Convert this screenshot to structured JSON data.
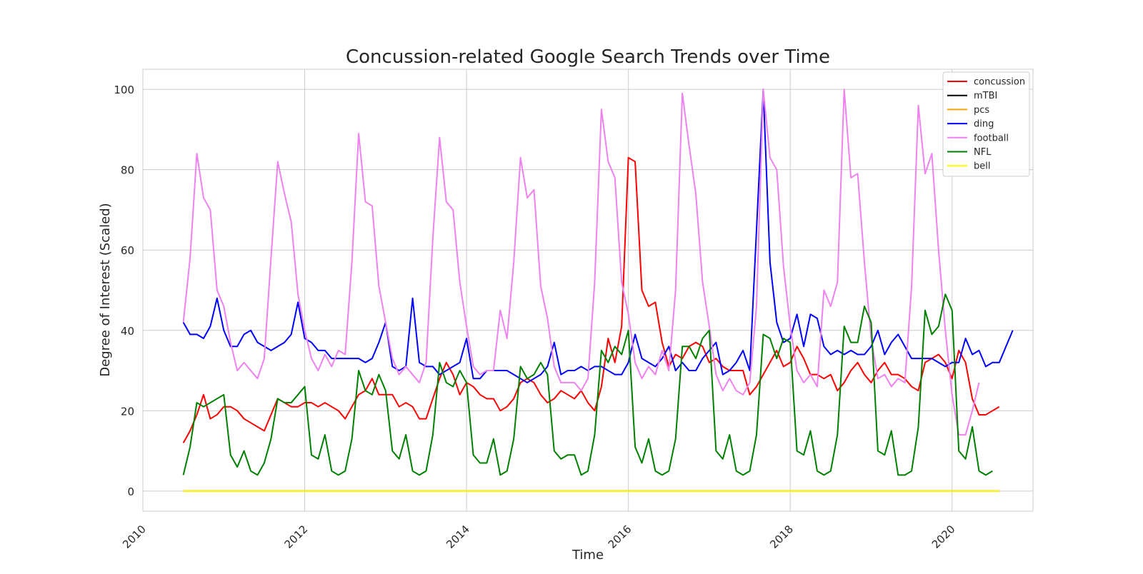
{
  "chart_data": {
    "type": "line",
    "title": "Concussion-related Google Search Trends over Time",
    "xlabel": "Time",
    "ylabel": "Degree of Interest (Scaled)",
    "xlim": [
      2010.0,
      2021.0
    ],
    "ylim": [
      -5,
      105
    ],
    "xticks": [
      2010,
      2012,
      2014,
      2016,
      2018,
      2020
    ],
    "yticks": [
      0,
      20,
      40,
      60,
      80,
      100
    ],
    "grid": true,
    "legend_position": "top-right",
    "x_start": 2010.5,
    "x_step_months": 1,
    "series": [
      {
        "name": "concussion",
        "color": "#ff0000",
        "values": [
          12,
          15,
          19,
          24,
          18,
          19,
          21,
          21,
          20,
          18,
          17,
          16,
          15,
          19,
          23,
          22,
          21,
          21,
          22,
          22,
          21,
          22,
          21,
          20,
          18,
          21,
          24,
          25,
          28,
          24,
          24,
          24,
          21,
          22,
          21,
          18,
          18,
          23,
          28,
          32,
          29,
          24,
          27,
          26,
          24,
          23,
          23,
          20,
          21,
          23,
          27,
          28,
          27,
          24,
          22,
          23,
          25,
          24,
          23,
          25,
          22,
          20,
          26,
          38,
          32,
          41,
          83,
          82,
          50,
          46,
          47,
          37,
          31,
          34,
          33,
          36,
          37,
          36,
          32,
          33,
          31,
          30,
          30,
          30,
          24,
          26,
          29,
          32,
          35,
          31,
          32,
          36,
          33,
          29,
          29,
          28,
          29,
          25,
          27,
          30,
          32,
          29,
          27,
          30,
          32,
          29,
          29,
          28,
          26,
          25,
          32,
          33,
          34,
          32,
          28,
          35,
          32,
          23,
          19,
          19,
          20,
          21
        ]
      },
      {
        "name": "mTBI",
        "color": "#000000",
        "values": [
          0,
          0,
          0,
          0,
          0,
          0,
          0,
          0,
          0,
          0,
          0,
          0,
          0,
          0,
          0,
          0,
          0,
          0,
          0,
          0,
          0,
          0,
          0,
          0,
          0,
          0,
          0,
          0,
          0,
          0,
          0,
          0,
          0,
          0,
          0,
          0,
          0,
          0,
          0,
          0,
          0,
          0,
          0,
          0,
          0,
          0,
          0,
          0,
          0,
          0,
          0,
          0,
          0,
          0,
          0,
          0,
          0,
          0,
          0,
          0,
          0,
          0,
          0,
          0,
          0,
          0,
          0,
          0,
          0,
          0,
          0,
          0,
          0,
          0,
          0,
          0,
          0,
          0,
          0,
          0,
          0,
          0,
          0,
          0,
          0,
          0,
          0,
          0,
          0,
          0,
          0,
          0,
          0,
          0,
          0,
          0,
          0,
          0,
          0,
          0,
          0,
          0,
          0,
          0,
          0,
          0,
          0,
          0,
          0,
          0,
          0,
          0,
          0,
          0,
          0,
          0,
          0,
          0,
          0,
          0,
          0,
          0
        ]
      },
      {
        "name": "pcs",
        "color": "#ffa500",
        "values": [
          0,
          0,
          0,
          0,
          0,
          0,
          0,
          0,
          0,
          0,
          0,
          0,
          0,
          0,
          0,
          0,
          0,
          0,
          0,
          0,
          0,
          0,
          0,
          0,
          0,
          0,
          0,
          0,
          0,
          0,
          0,
          0,
          0,
          0,
          0,
          0,
          0,
          0,
          0,
          0,
          0,
          0,
          0,
          0,
          0,
          0,
          0,
          0,
          0,
          0,
          0,
          0,
          0,
          0,
          0,
          0,
          0,
          0,
          0,
          0,
          0,
          0,
          0,
          0,
          0,
          0,
          0,
          0,
          0,
          0,
          0,
          0,
          0,
          0,
          0,
          0,
          0,
          0,
          0,
          0,
          0,
          0,
          0,
          0,
          0,
          0,
          0,
          0,
          0,
          0,
          0,
          0,
          0,
          0,
          0,
          0,
          0,
          0,
          0,
          0,
          0,
          0,
          0,
          0,
          0,
          0,
          0,
          0,
          0,
          0,
          0,
          0,
          0,
          0,
          0,
          0,
          0,
          0,
          0,
          0,
          0,
          0
        ]
      },
      {
        "name": "ding",
        "color": "#0000ff",
        "values": [
          42,
          39,
          39,
          38,
          41,
          48,
          40,
          36,
          36,
          39,
          40,
          37,
          36,
          35,
          36,
          37,
          39,
          47,
          38,
          37,
          35,
          35,
          33,
          33,
          33,
          33,
          33,
          32,
          33,
          37,
          42,
          31,
          30,
          31,
          48,
          32,
          31,
          31,
          29,
          30,
          31,
          32,
          38,
          28,
          28,
          30,
          30,
          30,
          30,
          29,
          28,
          27,
          28,
          29,
          31,
          37,
          29,
          30,
          30,
          31,
          30,
          31,
          31,
          30,
          29,
          29,
          32,
          39,
          33,
          32,
          31,
          33,
          36,
          30,
          32,
          30,
          30,
          33,
          35,
          37,
          29,
          30,
          32,
          35,
          30,
          65,
          100,
          57,
          42,
          37,
          38,
          44,
          36,
          44,
          43,
          36,
          34,
          35,
          34,
          35,
          34,
          34,
          36,
          40,
          34,
          37,
          39,
          36,
          33,
          33,
          33,
          33,
          32,
          31,
          32,
          32,
          38,
          34,
          35,
          31,
          32,
          32,
          36,
          40
        ]
      },
      {
        "name": "football",
        "color": "#ee82ee",
        "values": [
          42,
          58,
          84,
          73,
          70,
          50,
          46,
          37,
          30,
          32,
          30,
          28,
          33,
          58,
          82,
          74,
          67,
          49,
          40,
          33,
          30,
          34,
          31,
          35,
          34,
          57,
          89,
          72,
          71,
          51,
          42,
          33,
          29,
          31,
          29,
          27,
          32,
          63,
          88,
          72,
          70,
          52,
          41,
          31,
          29,
          30,
          30,
          45,
          38,
          57,
          83,
          73,
          75,
          51,
          43,
          31,
          27,
          27,
          27,
          25,
          28,
          52,
          95,
          82,
          78,
          52,
          44,
          32,
          28,
          31,
          29,
          35,
          30,
          50,
          99,
          86,
          74,
          52,
          41,
          29,
          25,
          28,
          25,
          24,
          27,
          46,
          100,
          83,
          80,
          56,
          41,
          30,
          27,
          29,
          26,
          50,
          46,
          52,
          100,
          78,
          79,
          57,
          38,
          28,
          29,
          26,
          28,
          27,
          51,
          96,
          79,
          84,
          60,
          40,
          24,
          14,
          14,
          20,
          27
        ]
      },
      {
        "name": "NFL",
        "color": "#008000",
        "values": [
          4,
          11,
          22,
          21,
          22,
          23,
          24,
          9,
          6,
          10,
          5,
          4,
          7,
          13,
          23,
          22,
          22,
          24,
          26,
          9,
          8,
          14,
          5,
          4,
          5,
          13,
          30,
          25,
          24,
          29,
          25,
          10,
          8,
          14,
          5,
          4,
          5,
          14,
          32,
          27,
          26,
          30,
          27,
          9,
          7,
          7,
          13,
          4,
          5,
          13,
          31,
          28,
          29,
          32,
          29,
          10,
          8,
          9,
          9,
          4,
          5,
          14,
          35,
          32,
          36,
          34,
          40,
          11,
          7,
          13,
          5,
          4,
          5,
          13,
          36,
          36,
          33,
          38,
          40,
          10,
          8,
          14,
          5,
          4,
          5,
          14,
          39,
          38,
          33,
          38,
          37,
          10,
          9,
          15,
          5,
          4,
          5,
          14,
          41,
          37,
          37,
          46,
          42,
          10,
          9,
          15,
          4,
          4,
          5,
          16,
          45,
          39,
          41,
          49,
          45,
          10,
          8,
          16,
          5,
          4,
          5
        ]
      },
      {
        "name": "bell",
        "color": "#ffff00",
        "values": [
          0,
          0,
          0,
          0,
          0,
          0,
          0,
          0,
          0,
          0,
          0,
          0,
          0,
          0,
          0,
          0,
          0,
          0,
          0,
          0,
          0,
          0,
          0,
          0,
          0,
          0,
          0,
          0,
          0,
          0,
          0,
          0,
          0,
          0,
          0,
          0,
          0,
          0,
          0,
          0,
          0,
          0,
          0,
          0,
          0,
          0,
          0,
          0,
          0,
          0,
          0,
          0,
          0,
          0,
          0,
          0,
          0,
          0,
          0,
          0,
          0,
          0,
          0,
          0,
          0,
          0,
          0,
          0,
          0,
          0,
          0,
          0,
          0,
          0,
          0,
          0,
          0,
          0,
          0,
          0,
          0,
          0,
          0,
          0,
          0,
          0,
          0,
          0,
          0,
          0,
          0,
          0,
          0,
          0,
          0,
          0,
          0,
          0,
          0,
          0,
          0,
          0,
          0,
          0,
          0,
          0,
          0,
          0,
          0,
          0,
          0,
          0,
          0,
          0,
          0,
          0,
          0,
          0,
          0,
          0,
          0,
          0
        ]
      }
    ]
  }
}
